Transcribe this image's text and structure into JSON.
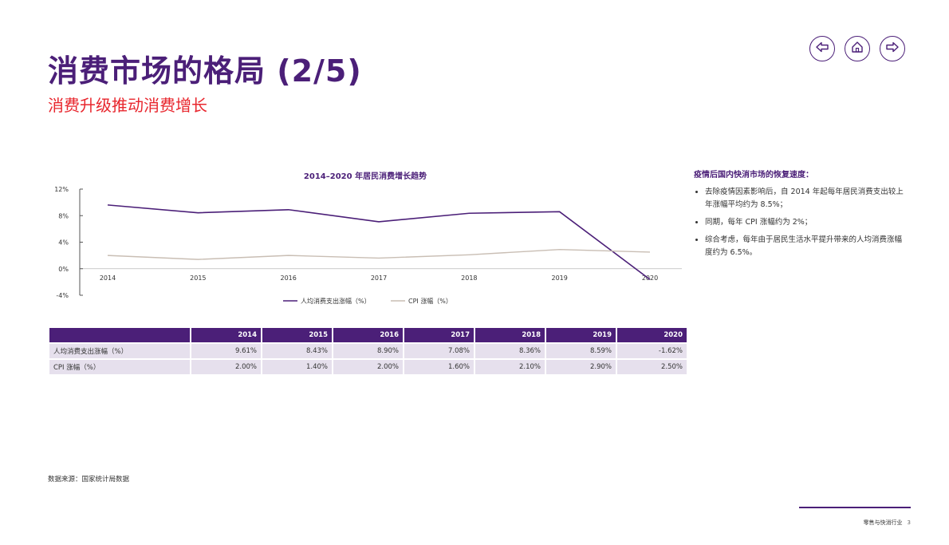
{
  "page": {
    "title": "消费市场的格局 (2/5)",
    "subtitle": "消费升级推动消费增长",
    "source": "数据来源：国家统计局数据",
    "footer_label": "零售与快消行业",
    "page_number": "3"
  },
  "nav": {
    "prev_icon": "arrow-left-icon",
    "home_icon": "home-icon",
    "next_icon": "arrow-right-icon"
  },
  "colors": {
    "accent": "#4b1f78",
    "red": "#e8262d",
    "cpi": "#c9beb4"
  },
  "chart_data": {
    "type": "line",
    "title": "2014–2020 年居民消费增长趋势",
    "categories": [
      "2014",
      "2015",
      "2016",
      "2017",
      "2018",
      "2019",
      "2020"
    ],
    "series": [
      {
        "name": "人均消费支出涨幅（%）",
        "values": [
          9.61,
          8.43,
          8.9,
          7.08,
          8.36,
          8.59,
          -1.62
        ],
        "color": "#4b1f78"
      },
      {
        "name": "CPI 涨幅（%）",
        "values": [
          2.0,
          1.4,
          2.0,
          1.6,
          2.1,
          2.9,
          2.5
        ],
        "color": "#c9beb4"
      }
    ],
    "yticks": [
      "12%",
      "8%",
      "4%",
      "0%",
      "-4%"
    ],
    "ytick_values": [
      12,
      8,
      4,
      0,
      -4
    ],
    "ylim": [
      -4,
      12
    ],
    "legend_position": "bottom"
  },
  "table": {
    "header": [
      "",
      "2014",
      "2015",
      "2016",
      "2017",
      "2018",
      "2019",
      "2020"
    ],
    "rows": [
      {
        "label": "人均消费支出涨幅（%）",
        "values": [
          "9.61%",
          "8.43%",
          "8.90%",
          "7.08%",
          "8.36%",
          "8.59%",
          "-1.62%"
        ]
      },
      {
        "label": "CPI 涨幅（%）",
        "values": [
          "2.00%",
          "1.40%",
          "2.00%",
          "1.60%",
          "2.10%",
          "2.90%",
          "2.50%"
        ]
      }
    ]
  },
  "side": {
    "title": "疫情后国内快消市场的恢复速度：",
    "bullets": [
      "去除疫情因素影响后，自 2014 年起每年居民消费支出较上年涨幅平均约为 8.5%；",
      "同期，每年 CPI 涨幅约为 2%；",
      "综合考虑，每年由于居民生活水平提升带来的人均消费涨幅度约为 6.5%。"
    ]
  }
}
